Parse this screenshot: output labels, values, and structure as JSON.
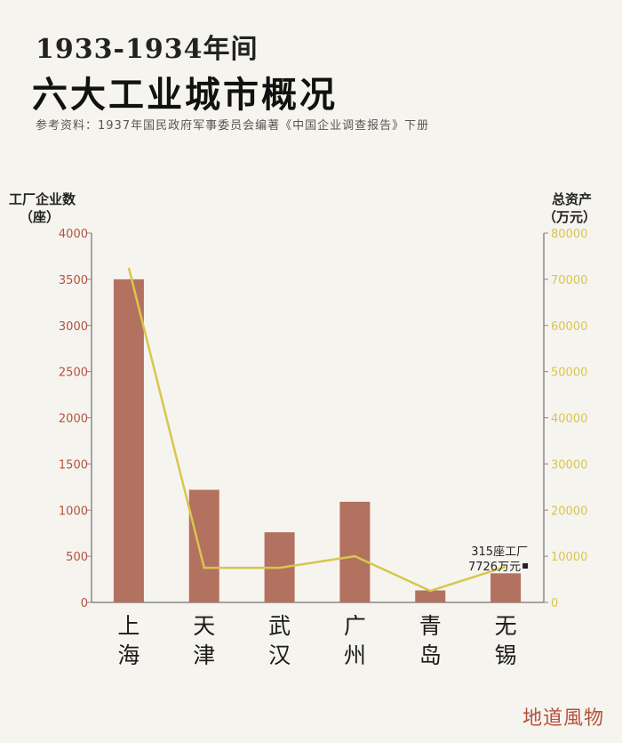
{
  "header": {
    "title_line1": "1933-1934年间",
    "title_line2": "六大工业城市概况",
    "subtitle": "参考资料：1937年国民政府军事委员会编著《中国企业调查报告》下册"
  },
  "brand": "地道風物",
  "colors": {
    "bar": "#b37160",
    "line": "#d8c64d",
    "axis_left": "#b5523d",
    "axis_right": "#d8c64d"
  },
  "chart_data": {
    "type": "bar",
    "categories": [
      "上海",
      "天津",
      "武汉",
      "广州",
      "青岛",
      "无锡"
    ],
    "category_labels": [
      [
        "上",
        "海"
      ],
      [
        "天",
        "津"
      ],
      [
        "武",
        "汉"
      ],
      [
        "广",
        "州"
      ],
      [
        "青",
        "岛"
      ],
      [
        "无",
        "锡"
      ]
    ],
    "series": [
      {
        "type": "bar",
        "axis": "left",
        "values": [
          3500,
          1220,
          760,
          1090,
          130,
          315
        ]
      },
      {
        "type": "line",
        "axis": "right",
        "values": [
          72500,
          7500,
          7500,
          10000,
          2500,
          7726
        ]
      }
    ],
    "ylabel_left_lines": [
      "工厂企业数",
      "（座）"
    ],
    "ylabel_right_lines": [
      "总资产",
      "（万元）"
    ],
    "ylim_left": [
      0,
      4000
    ],
    "ylim_right": [
      0,
      80000
    ],
    "yticks_left": [
      0,
      500,
      1000,
      1500,
      2000,
      2500,
      3000,
      3500,
      4000
    ],
    "yticks_right": [
      0,
      10000,
      20000,
      30000,
      40000,
      50000,
      60000,
      70000,
      80000
    ],
    "annotation_lines": [
      "315座工厂",
      "7726万元"
    ],
    "grid": false
  }
}
